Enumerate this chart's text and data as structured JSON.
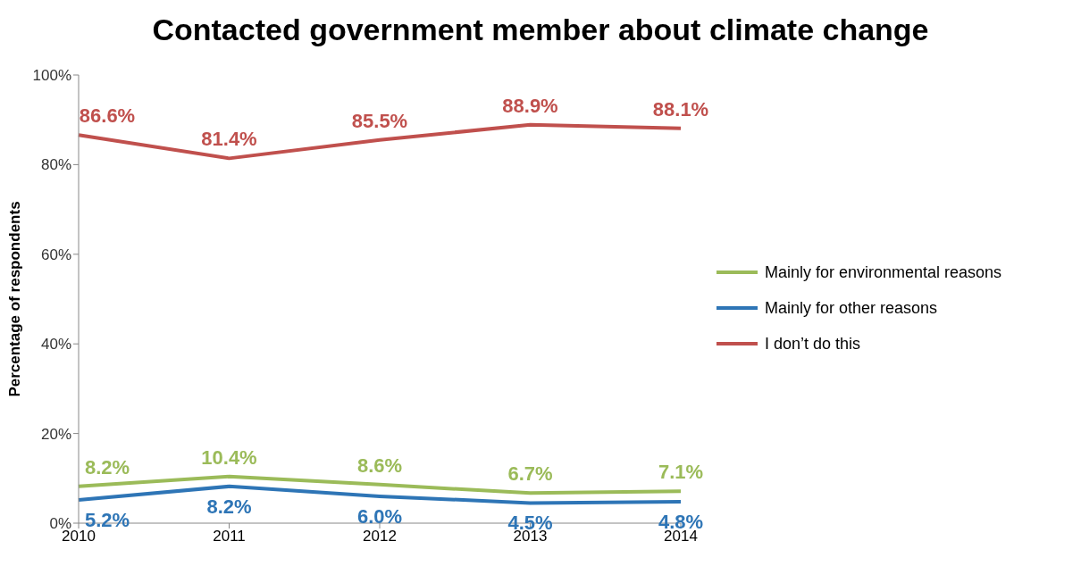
{
  "chart_data": {
    "type": "line",
    "title": "Contacted government member about climate change",
    "ylabel": "Percentage of respondents",
    "categories": [
      "2010",
      "2011",
      "2012",
      "2013",
      "2014"
    ],
    "series": [
      {
        "name": "Mainly for environmental reasons",
        "color": "#9bbb59",
        "values": [
          8.2,
          10.4,
          8.6,
          6.7,
          7.1
        ],
        "value_labels": [
          "8.2%",
          "10.4%",
          "8.6%",
          "6.7%",
          "7.1%"
        ]
      },
      {
        "name": "Mainly for other reasons",
        "color": "#2e75b6",
        "values": [
          5.2,
          8.2,
          6.0,
          4.5,
          4.8
        ],
        "value_labels": [
          "5.2%",
          "8.2%",
          "6.0%",
          "4.5%",
          "4.8%"
        ]
      },
      {
        "name": "I don’t do this",
        "color": "#c0504d",
        "values": [
          86.6,
          81.4,
          85.5,
          88.9,
          88.1
        ],
        "value_labels": [
          "86.6%",
          "81.4%",
          "85.5%",
          "88.9%",
          "88.1%"
        ]
      }
    ],
    "ylim": [
      0,
      100
    ],
    "yticks": [
      {
        "value": 0,
        "label": "0%"
      },
      {
        "value": 20,
        "label": "20%"
      },
      {
        "value": 40,
        "label": "40%"
      },
      {
        "value": 60,
        "label": "60%"
      },
      {
        "value": 80,
        "label": "80%"
      },
      {
        "value": 100,
        "label": "100%"
      }
    ],
    "grid": false,
    "legend": "right",
    "marker": "none",
    "line_style": "solid"
  }
}
